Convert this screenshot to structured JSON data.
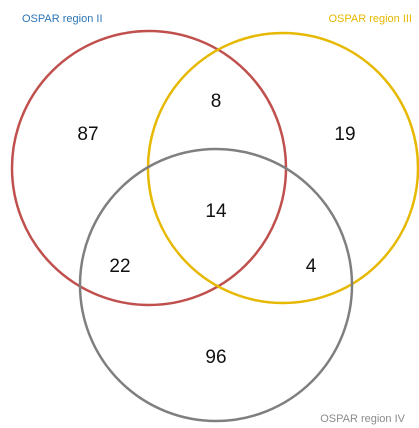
{
  "sets": [
    {
      "label": "OSPAR region II",
      "color": "#c0504d",
      "label_color": "#2e75b6"
    },
    {
      "label": "OSPAR region III",
      "color": "#e6b800",
      "label_color": "#e6b800"
    },
    {
      "label": "OSPAR region IV",
      "color": "#7f7f7f",
      "label_color": "#8c8c8c"
    }
  ],
  "regions": [
    {
      "value": 87
    },
    {
      "value": 8
    },
    {
      "value": 19
    },
    {
      "value": 14
    },
    {
      "value": 22
    },
    {
      "value": 4
    },
    {
      "value": 96
    }
  ]
}
